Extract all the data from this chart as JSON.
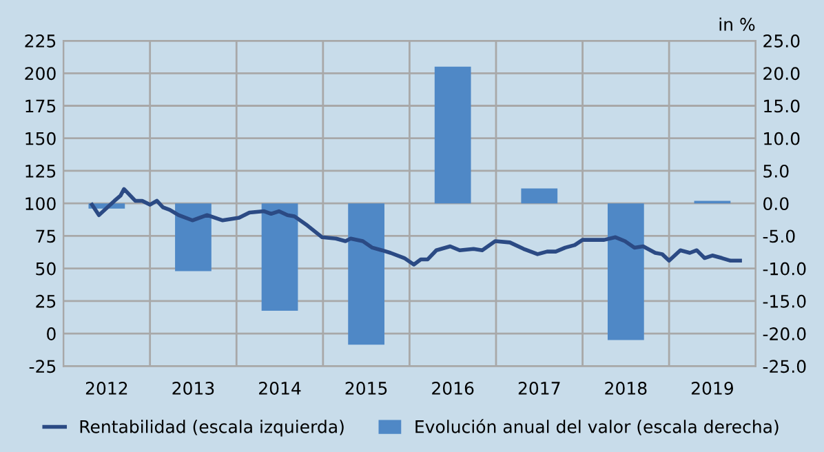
{
  "chart_data": {
    "type": "line",
    "series": [
      {
        "name": "Rentabilidad (escala izquierda)",
        "color": "#2b4a84",
        "x": [
          2012.33,
          2012.41,
          2012.59,
          2012.66,
          2012.7,
          2012.83,
          2012.91,
          2013.0,
          2013.08,
          2013.15,
          2013.23,
          2013.33,
          2013.49,
          2013.66,
          2013.84,
          2014.03,
          2014.15,
          2014.32,
          2014.4,
          2014.49,
          2014.59,
          2014.67,
          2014.82,
          2014.99,
          2015.15,
          2015.26,
          2015.32,
          2015.46,
          2015.57,
          2015.68,
          2015.78,
          2015.94,
          2016.05,
          2016.13,
          2016.21,
          2016.31,
          2016.47,
          2016.58,
          2016.74,
          2016.84,
          2016.99,
          2017.16,
          2017.32,
          2017.48,
          2017.59,
          2017.69,
          2017.8,
          2017.91,
          2018.0,
          2018.25,
          2018.38,
          2018.49,
          2018.6,
          2018.7,
          2018.84,
          2018.92,
          2019.0,
          2019.13,
          2019.24,
          2019.32,
          2019.41,
          2019.5,
          2019.61,
          2019.71,
          2019.82
        ],
        "values": [
          99,
          91,
          102,
          106,
          111,
          102,
          102,
          99,
          102,
          97,
          95,
          91,
          87,
          91,
          87,
          89,
          93,
          94,
          92,
          94,
          91,
          90,
          83,
          74,
          73,
          71,
          73,
          71,
          66,
          64,
          62,
          58,
          53,
          57,
          57,
          64,
          67,
          64,
          65,
          64,
          71,
          70,
          65,
          61,
          63,
          63,
          66,
          68,
          72,
          72,
          74,
          71,
          66,
          67,
          62,
          61,
          56,
          64,
          62,
          64,
          58,
          60,
          58,
          56,
          56
        ]
      },
      {
        "name": "Evolución anual del valor (escala derecha)",
        "type": "bar",
        "axis": "y2",
        "color": "#4f88c6",
        "x": [
          2012.5,
          2013.5,
          2014.5,
          2015.5,
          2016.5,
          2017.5,
          2018.5,
          2019.5
        ],
        "values": [
          -0.8,
          -10.4,
          -16.5,
          -21.7,
          21.0,
          2.3,
          -21.0,
          0.4
        ]
      }
    ],
    "xlim": [
      2012,
      2020
    ],
    "xticks": [
      {
        "value": 2012.5,
        "label": "2012"
      },
      {
        "value": 2013,
        "label": null
      },
      {
        "value": 2013.5,
        "label": "2013"
      },
      {
        "value": 2014,
        "label": null
      },
      {
        "value": 2014.5,
        "label": "2014"
      },
      {
        "value": 2015,
        "label": null
      },
      {
        "value": 2015.5,
        "label": "2015"
      },
      {
        "value": 2016,
        "label": null
      },
      {
        "value": 2016.5,
        "label": "2016"
      },
      {
        "value": 2017,
        "label": null
      },
      {
        "value": 2017.5,
        "label": "2017"
      },
      {
        "value": 2018,
        "label": null
      },
      {
        "value": 2018.5,
        "label": "2018"
      },
      {
        "value": 2019,
        "label": null
      },
      {
        "value": 2019.5,
        "label": "2019"
      }
    ],
    "ylim": [
      -25,
      225
    ],
    "yticks": [
      -25,
      0,
      25,
      50,
      75,
      100,
      125,
      150,
      175,
      200,
      225
    ],
    "y2lim": [
      -25,
      25
    ],
    "y2ticks": [
      {
        "value": -25,
        "label": "-25.0"
      },
      {
        "value": -20,
        "label": "-20.0"
      },
      {
        "value": -15,
        "label": "-15.0"
      },
      {
        "value": -10,
        "label": "-10.0"
      },
      {
        "value": -5,
        "label": "-5.0"
      },
      {
        "value": 0,
        "label": "0.0"
      },
      {
        "value": 5,
        "label": "5.0"
      },
      {
        "value": 10,
        "label": "10.0"
      },
      {
        "value": 15,
        "label": "15.0"
      },
      {
        "value": 20,
        "label": "20.0"
      },
      {
        "value": 25,
        "label": "25.0"
      }
    ],
    "y2label": "in %",
    "grid": true,
    "legend": "bottom"
  }
}
